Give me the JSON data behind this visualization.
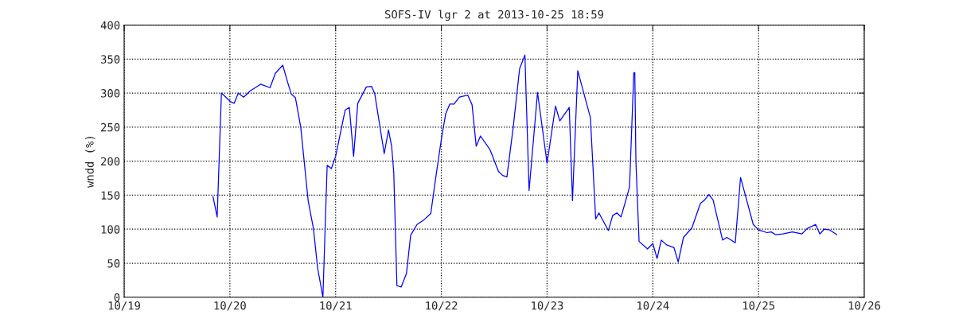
{
  "chart_data": {
    "type": "line",
    "title": "SOFS-IV lgr 2 at 2013-10-25 18:59",
    "ylabel": "wndd (%)",
    "x": [
      "2013-10-19T20:10",
      "2013-10-19T21:07",
      "2013-10-19T22:05",
      "2013-10-20T00:14",
      "2013-10-20T00:58",
      "2013-10-20T01:55",
      "2013-10-20T03:07",
      "2013-10-20T04:34",
      "2013-10-20T06:58",
      "2013-10-20T09:07",
      "2013-10-20T10:19",
      "2013-10-20T12:00",
      "2013-10-20T13:12",
      "2013-10-20T13:55",
      "2013-10-20T14:53",
      "2013-10-20T16:05",
      "2013-10-20T17:46",
      "2013-10-20T18:58",
      "2013-10-20T19:55",
      "2013-10-20T21:07",
      "2013-10-20T22:05",
      "2013-10-20T23:02",
      "2013-10-21T00:00",
      "2013-10-21T02:10",
      "2013-10-21T03:07",
      "2013-10-21T04:05",
      "2013-10-21T05:02",
      "2013-10-21T06:58",
      "2013-10-21T08:10",
      "2013-10-21T08:53",
      "2013-10-21T11:02",
      "2013-10-21T12:00",
      "2013-10-21T12:43",
      "2013-10-21T13:12",
      "2013-10-21T13:55",
      "2013-10-21T14:53",
      "2013-10-21T16:05",
      "2013-10-21T17:02",
      "2013-10-21T18:29",
      "2013-10-21T19:55",
      "2013-10-21T21:36",
      "2013-10-21T22:48",
      "2013-10-22T00:00",
      "2013-10-22T00:58",
      "2013-10-22T01:55",
      "2013-10-22T02:53",
      "2013-10-22T04:05",
      "2013-10-22T06:00",
      "2013-10-22T06:58",
      "2013-10-22T07:55",
      "2013-10-22T08:53",
      "2013-10-22T11:02",
      "2013-10-22T12:58",
      "2013-10-22T13:55",
      "2013-10-22T14:53",
      "2013-10-22T16:19",
      "2013-10-22T17:46",
      "2013-10-22T18:58",
      "2013-10-22T19:55",
      "2013-10-22T21:50",
      "2013-10-23T00:00",
      "2013-10-23T01:55",
      "2013-10-23T02:53",
      "2013-10-23T05:02",
      "2013-10-23T05:46",
      "2013-10-23T06:58",
      "2013-10-23T09:50",
      "2013-10-23T11:02",
      "2013-10-23T11:46",
      "2013-10-23T13:55",
      "2013-10-23T14:53",
      "2013-10-23T15:50",
      "2013-10-23T16:48",
      "2013-10-23T18:43",
      "2013-10-23T19:41",
      "2013-10-23T19:55",
      "2013-10-23T20:10",
      "2013-10-23T20:53",
      "2013-10-23T22:48",
      "2013-10-24T00:00",
      "2013-10-24T00:58",
      "2013-10-24T01:55",
      "2013-10-24T03:07",
      "2013-10-24T04:48",
      "2013-10-24T05:46",
      "2013-10-24T06:58",
      "2013-10-24T08:53",
      "2013-10-24T10:48",
      "2013-10-24T11:46",
      "2013-10-24T12:43",
      "2013-10-24T13:41",
      "2013-10-24T15:50",
      "2013-10-24T16:48",
      "2013-10-24T18:43",
      "2013-10-24T19:55",
      "2013-10-24T22:48",
      "2013-10-25T00:00",
      "2013-10-25T01:55",
      "2013-10-25T02:53",
      "2013-10-25T03:50",
      "2013-10-25T05:31",
      "2013-10-25T07:41",
      "2013-10-25T09:50",
      "2013-10-25T11:02",
      "2013-10-25T12:58",
      "2013-10-25T13:55",
      "2013-10-25T14:53",
      "2013-10-25T16:05",
      "2013-10-25T17:46"
    ],
    "series": [
      {
        "color": "#0000ff",
        "values": [
          148,
          118,
          300,
          287,
          285,
          300,
          294,
          303,
          313,
          308,
          329,
          341,
          314,
          299,
          293,
          250,
          142,
          101,
          43,
          0,
          194,
          189,
          207,
          275,
          279,
          207,
          285,
          309,
          310,
          299,
          211,
          246,
          222,
          183,
          17,
          15,
          35,
          91,
          107,
          113,
          123,
          179,
          232,
          269,
          284,
          284,
          294,
          297,
          283,
          222,
          237,
          217,
          185,
          179,
          177,
          250,
          336,
          356,
          157,
          301,
          197,
          281,
          259,
          279,
          142,
          333,
          264,
          115,
          124,
          98,
          120,
          124,
          118,
          162,
          330,
          330,
          199,
          82,
          71,
          79,
          57,
          84,
          77,
          73,
          52,
          88,
          102,
          138,
          143,
          151,
          143,
          84,
          88,
          80,
          176,
          107,
          99,
          95,
          96,
          92,
          93,
          96,
          93,
          101,
          107,
          93,
          100,
          99,
          92
        ]
      }
    ],
    "xlim": [
      "2013-10-19",
      "2013-10-26"
    ],
    "xticks": [
      {
        "value": "2013-10-19",
        "label": "10/19"
      },
      {
        "value": "2013-10-20",
        "label": "10/20"
      },
      {
        "value": "2013-10-21",
        "label": "10/21"
      },
      {
        "value": "2013-10-22",
        "label": "10/22"
      },
      {
        "value": "2013-10-23",
        "label": "10/23"
      },
      {
        "value": "2013-10-24",
        "label": "10/24"
      },
      {
        "value": "2013-10-25",
        "label": "10/25"
      },
      {
        "value": "2013-10-26",
        "label": "10/26"
      }
    ],
    "ylim": [
      0,
      400
    ],
    "yticks": [
      0,
      50,
      100,
      150,
      200,
      250,
      300,
      350,
      400
    ],
    "grid": true,
    "line_style": "solid",
    "marker": "none"
  }
}
